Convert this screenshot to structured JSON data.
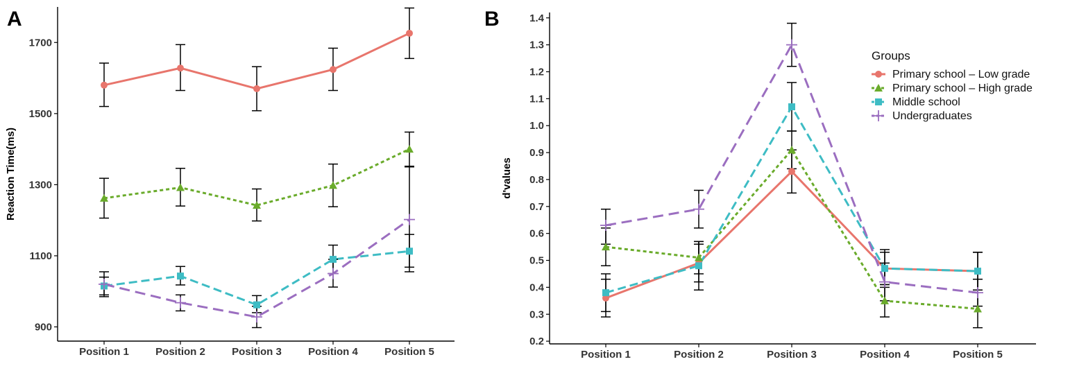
{
  "chart_data": [
    {
      "panel": "A",
      "type": "line",
      "title": "",
      "xlabel": "",
      "ylabel": "Reaction Time(ms)",
      "categories": [
        "Position 1",
        "Position 2",
        "Position 3",
        "Position 4",
        "Position 5"
      ],
      "ylim": [
        860,
        1800
      ],
      "yticks": [
        900,
        1100,
        1300,
        1500,
        1700
      ],
      "series": [
        {
          "name": "Primary school – Low grade",
          "color": "#E8756C",
          "marker": "circle",
          "dash": "solid",
          "values": [
            1580,
            1628,
            1570,
            1624,
            1726
          ],
          "err_low": [
            1520,
            1565,
            1508,
            1565,
            1655
          ],
          "err_high": [
            1642,
            1694,
            1632,
            1684,
            1797
          ]
        },
        {
          "name": "Primary school – High grade",
          "color": "#6AAB2B",
          "marker": "triangle",
          "dash": "dotted",
          "values": [
            1262,
            1292,
            1242,
            1298,
            1400
          ],
          "err_low": [
            1206,
            1240,
            1198,
            1238,
            1350
          ],
          "err_high": [
            1318,
            1346,
            1288,
            1358,
            1448
          ]
        },
        {
          "name": "Middle school",
          "color": "#3EBCC4",
          "marker": "square",
          "dash": "dashed",
          "values": [
            1015,
            1043,
            962,
            1090,
            1113
          ],
          "err_low": [
            990,
            1018,
            940,
            1050,
            1068
          ],
          "err_high": [
            1040,
            1070,
            988,
            1130,
            1160
          ]
        },
        {
          "name": "Undergraduates",
          "color": "#9B6EC0",
          "marker": "plus",
          "dash": "longdash",
          "values": [
            1020,
            968,
            928,
            1050,
            1202
          ],
          "err_low": [
            985,
            945,
            898,
            1012,
            1055
          ],
          "err_high": [
            1055,
            990,
            958,
            1090,
            1352
          ]
        }
      ]
    },
    {
      "panel": "B",
      "type": "line",
      "title": "",
      "xlabel": "",
      "ylabel": "d'values",
      "categories": [
        "Position 1",
        "Position 2",
        "Position 3",
        "Position 4",
        "Position 5"
      ],
      "ylim": [
        0.19,
        1.42
      ],
      "yticks": [
        "0.2",
        "0.3",
        "0.4",
        "0.5",
        "0.6",
        "0.7",
        "0.8",
        "0.9",
        "1.0",
        "1.1",
        "1.2",
        "1.3",
        "1.4"
      ],
      "legend_title": "Groups",
      "legend_position": "top-right",
      "series": [
        {
          "name": "Primary school – Low grade",
          "color": "#E8756C",
          "marker": "circle",
          "dash": "solid",
          "values": [
            0.36,
            0.49,
            0.83,
            0.47,
            0.46
          ],
          "err_low": [
            0.29,
            0.42,
            0.75,
            0.41,
            0.39
          ],
          "err_high": [
            0.43,
            0.56,
            0.91,
            0.53,
            0.53
          ]
        },
        {
          "name": "Primary school – High grade",
          "color": "#6AAB2B",
          "marker": "triangle",
          "dash": "dotted",
          "values": [
            0.55,
            0.51,
            0.91,
            0.35,
            0.32
          ],
          "err_low": [
            0.48,
            0.45,
            0.84,
            0.29,
            0.25
          ],
          "err_high": [
            0.62,
            0.57,
            0.98,
            0.41,
            0.39
          ]
        },
        {
          "name": "Middle school",
          "color": "#3EBCC4",
          "marker": "square",
          "dash": "dashed",
          "values": [
            0.38,
            0.48,
            1.07,
            0.47,
            0.46
          ],
          "err_low": [
            0.31,
            0.39,
            0.98,
            0.4,
            0.39
          ],
          "err_high": [
            0.45,
            0.57,
            1.16,
            0.54,
            0.53
          ]
        },
        {
          "name": "Undergraduates",
          "color": "#9B6EC0",
          "marker": "plus",
          "dash": "longdash",
          "values": [
            0.63,
            0.69,
            1.3,
            0.42,
            0.38
          ],
          "err_low": [
            0.56,
            0.62,
            1.22,
            0.35,
            0.33
          ],
          "err_high": [
            0.69,
            0.76,
            1.38,
            0.49,
            0.43
          ]
        }
      ]
    }
  ]
}
